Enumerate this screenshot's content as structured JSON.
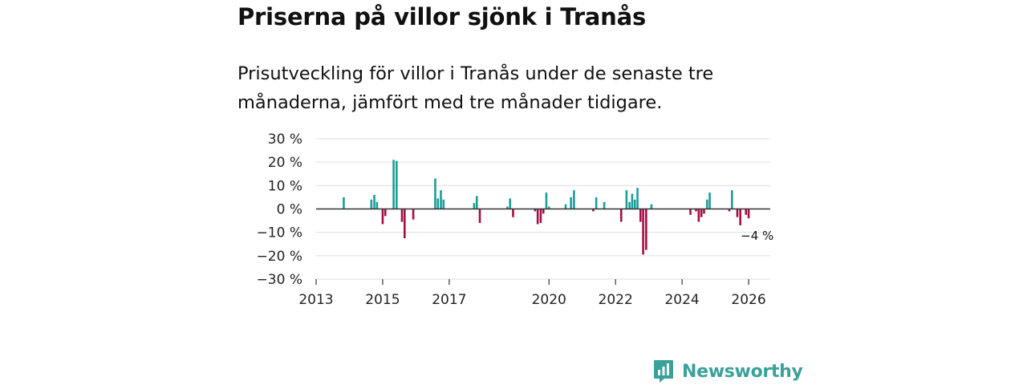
{
  "title": "Priserna på villor sjönk i Tranås",
  "subtitle": "Prisutveckling för villor i Tranås under de senaste tre månaderna, jämfört med tre månader tidigare.",
  "brand": {
    "name": "Newsworthy"
  },
  "colors": {
    "positive": "#1a9e97",
    "negative": "#a50d46",
    "grid": "#dddddd",
    "zero": "#333333",
    "brand": "#3aa19a"
  },
  "chart_data": {
    "type": "bar",
    "title": "Priserna på villor sjönk i Tranås",
    "ylabel": "",
    "xlabel": "",
    "ylim": [
      -30,
      30
    ],
    "xlim": [
      2013,
      2026.65
    ],
    "y_ticks": [
      30,
      20,
      10,
      0,
      -10,
      -20,
      -30
    ],
    "y_tick_labels": [
      "30 %",
      "20 %",
      "10 %",
      "0 %",
      "−10 %",
      "−20 %",
      "−30 %"
    ],
    "x_ticks": [
      2013,
      2015,
      2017,
      2020,
      2022,
      2024,
      2026
    ],
    "x_tick_labels": [
      "2013",
      "2015",
      "2017",
      "2020",
      "2022",
      "2024",
      "2026"
    ],
    "grid": true,
    "annotation": {
      "text": "−4 %",
      "x": 2025.92,
      "y": -4
    },
    "points": [
      {
        "x": 2013.83,
        "y": 5
      },
      {
        "x": 2014.66,
        "y": 4
      },
      {
        "x": 2014.75,
        "y": 6
      },
      {
        "x": 2014.83,
        "y": 3
      },
      {
        "x": 2015.0,
        "y": -6.5
      },
      {
        "x": 2015.08,
        "y": -3
      },
      {
        "x": 2015.33,
        "y": 21
      },
      {
        "x": 2015.42,
        "y": 20.5
      },
      {
        "x": 2015.58,
        "y": -5.5
      },
      {
        "x": 2015.66,
        "y": -12.5
      },
      {
        "x": 2015.92,
        "y": -4.5
      },
      {
        "x": 2016.58,
        "y": 13
      },
      {
        "x": 2016.66,
        "y": 4.5
      },
      {
        "x": 2016.75,
        "y": 8
      },
      {
        "x": 2016.83,
        "y": 4
      },
      {
        "x": 2017.75,
        "y": 2.5
      },
      {
        "x": 2017.83,
        "y": 5.5
      },
      {
        "x": 2017.92,
        "y": -6
      },
      {
        "x": 2018.75,
        "y": 1
      },
      {
        "x": 2018.83,
        "y": 4.5
      },
      {
        "x": 2018.92,
        "y": -3.5
      },
      {
        "x": 2019.58,
        "y": -1
      },
      {
        "x": 2019.66,
        "y": -6.5
      },
      {
        "x": 2019.75,
        "y": -6
      },
      {
        "x": 2019.83,
        "y": -2
      },
      {
        "x": 2019.92,
        "y": 7
      },
      {
        "x": 2020.0,
        "y": 1
      },
      {
        "x": 2020.5,
        "y": 2
      },
      {
        "x": 2020.66,
        "y": 5
      },
      {
        "x": 2020.75,
        "y": 8
      },
      {
        "x": 2021.33,
        "y": -1
      },
      {
        "x": 2021.42,
        "y": 5
      },
      {
        "x": 2021.66,
        "y": 3
      },
      {
        "x": 2022.17,
        "y": -5.5
      },
      {
        "x": 2022.33,
        "y": 8
      },
      {
        "x": 2022.42,
        "y": 3
      },
      {
        "x": 2022.5,
        "y": 6.5
      },
      {
        "x": 2022.58,
        "y": 4
      },
      {
        "x": 2022.66,
        "y": 9
      },
      {
        "x": 2022.75,
        "y": -5.5
      },
      {
        "x": 2022.83,
        "y": -19.5
      },
      {
        "x": 2022.92,
        "y": -17.5
      },
      {
        "x": 2023.08,
        "y": 2
      },
      {
        "x": 2024.25,
        "y": -2.5
      },
      {
        "x": 2024.42,
        "y": -1
      },
      {
        "x": 2024.5,
        "y": -5.5
      },
      {
        "x": 2024.58,
        "y": -3.5
      },
      {
        "x": 2024.66,
        "y": -2
      },
      {
        "x": 2024.75,
        "y": 4
      },
      {
        "x": 2024.83,
        "y": 7
      },
      {
        "x": 2025.42,
        "y": -1
      },
      {
        "x": 2025.5,
        "y": 8
      },
      {
        "x": 2025.66,
        "y": -3.5
      },
      {
        "x": 2025.75,
        "y": -7
      },
      {
        "x": 2025.92,
        "y": -2.5
      },
      {
        "x": 2026.0,
        "y": -4
      }
    ]
  }
}
